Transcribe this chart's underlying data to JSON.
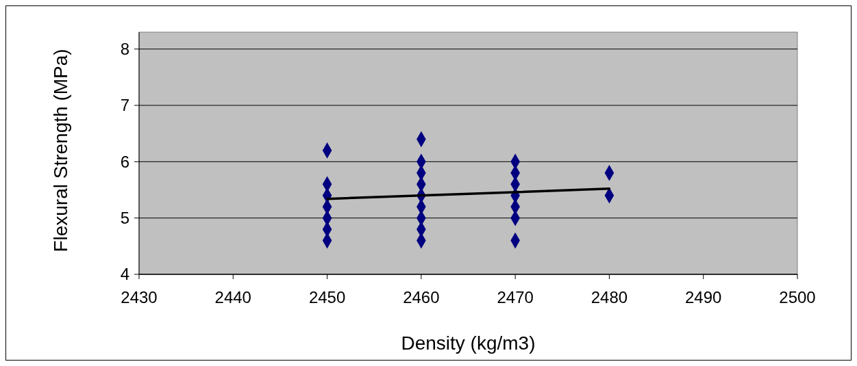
{
  "chart_data": {
    "type": "scatter",
    "xlabel": "Density (kg/m3)",
    "ylabel": "Flexural Strength (MPa)",
    "xlim": [
      2430,
      2500
    ],
    "xticks": [
      2430,
      2440,
      2450,
      2460,
      2470,
      2480,
      2490,
      2500
    ],
    "ylim": [
      4,
      8.3
    ],
    "yticks": [
      4,
      5,
      6,
      7,
      8
    ],
    "grid": "y",
    "marker": "diamond",
    "series": [
      {
        "color": "#000080",
        "x": [
          2450,
          2450,
          2450,
          2450,
          2450,
          2450,
          2450,
          2460,
          2460,
          2460,
          2460,
          2460,
          2460,
          2460,
          2460,
          2460,
          2470,
          2470,
          2470,
          2470,
          2470,
          2470,
          2470,
          2480,
          2480
        ],
        "values": [
          6.2,
          5.6,
          5.4,
          5.2,
          5.0,
          4.8,
          4.6,
          6.4,
          6.0,
          5.8,
          5.6,
          5.4,
          5.2,
          5.0,
          4.8,
          4.6,
          6.0,
          5.8,
          5.6,
          5.4,
          5.2,
          5.0,
          4.6,
          5.8,
          5.4
        ]
      },
      {
        "type": "line",
        "color": "#000000",
        "x": [
          2450,
          2480
        ],
        "values": [
          5.34,
          5.52
        ],
        "marker": "none"
      }
    ]
  }
}
